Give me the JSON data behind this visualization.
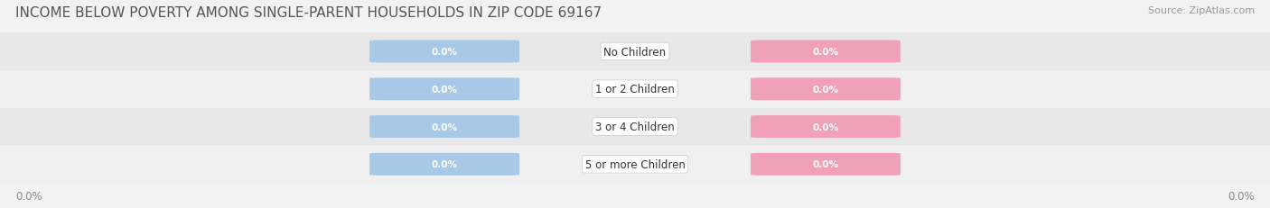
{
  "title": "INCOME BELOW POVERTY AMONG SINGLE-PARENT HOUSEHOLDS IN ZIP CODE 69167",
  "source": "Source: ZipAtlas.com",
  "categories": [
    "No Children",
    "1 or 2 Children",
    "3 or 4 Children",
    "5 or more Children"
  ],
  "single_father_values": [
    0.0,
    0.0,
    0.0,
    0.0
  ],
  "single_mother_values": [
    0.0,
    0.0,
    0.0,
    0.0
  ],
  "father_color": "#a8c8e8",
  "mother_color": "#f0a0b8",
  "background_color": "#f2f2f2",
  "row_bg_color": "#ebebeb",
  "row_alt_color": "#f8f8f8",
  "axis_label_left": "0.0%",
  "axis_label_right": "0.0%",
  "title_fontsize": 11,
  "label_fontsize": 8.5,
  "category_fontsize": 8.5,
  "tick_fontsize": 8.5,
  "source_fontsize": 8,
  "value_fontsize": 7.5
}
